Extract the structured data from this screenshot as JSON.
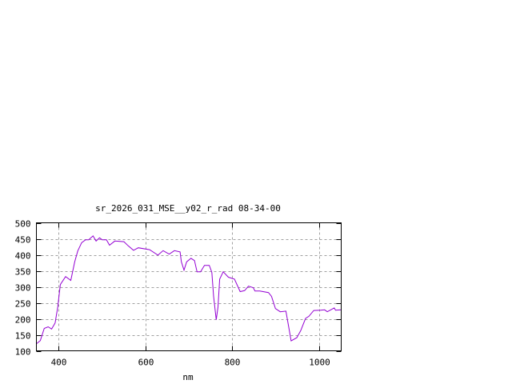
{
  "chart_data": {
    "type": "line",
    "title": "sr_2026_031_MSE__y02_r_rad 08-34-00",
    "xlabel": "nm",
    "ylabel": "",
    "xlim": [
      350,
      1050
    ],
    "ylim": [
      100,
      500
    ],
    "xticks": [
      400,
      600,
      800,
      1000
    ],
    "yticks": [
      100,
      150,
      200,
      250,
      300,
      350,
      400,
      450,
      500
    ],
    "grid": true,
    "line_color": "#9400d3",
    "series": [
      {
        "x": [
          350,
          352,
          359,
          368,
          377,
          385,
          393,
          399,
          405,
          417,
          429,
          438,
          445,
          454,
          463,
          470,
          480,
          487,
          495,
          501,
          511,
          518,
          530,
          551,
          561,
          573,
          584,
          610,
          629,
          641,
          655,
          667,
          680,
          683,
          689,
          695,
          705,
          713,
          719,
          727,
          736,
          747,
          753,
          757,
          763,
          767,
          771,
          779,
          791,
          805,
          818,
          828,
          837,
          848,
          852,
          863,
          883,
          890,
          899,
          910,
          923,
          930,
          935,
          948,
          957,
          968,
          976,
          987,
          1003,
          1012,
          1018,
          1034,
          1037,
          1050
        ],
        "y": [
          122,
          124,
          132,
          170,
          175,
          168,
          187,
          237,
          307,
          332,
          320,
          378,
          412,
          438,
          447,
          447,
          459,
          443,
          453,
          447,
          447,
          430,
          443,
          441,
          428,
          414,
          422,
          416,
          399,
          413,
          402,
          413,
          409,
          378,
          352,
          378,
          389,
          382,
          347,
          347,
          367,
          367,
          345,
          270,
          197,
          237,
          324,
          347,
          330,
          324,
          285,
          288,
          302,
          297,
          287,
          287,
          282,
          270,
          232,
          222,
          224,
          170,
          131,
          141,
          163,
          201,
          208,
          226,
          227,
          228,
          222,
          234,
          227,
          228
        ]
      }
    ]
  }
}
